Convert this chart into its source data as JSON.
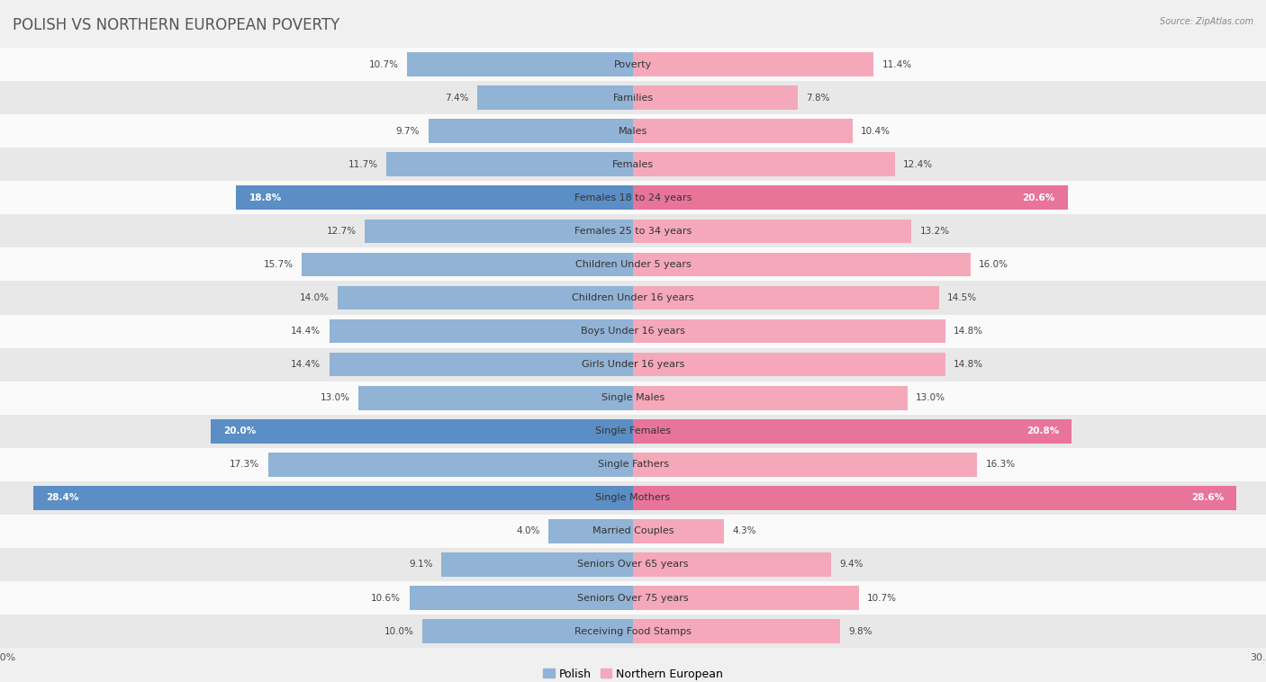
{
  "title": "POLISH VS NORTHERN EUROPEAN POVERTY",
  "source": "Source: ZipAtlas.com",
  "categories": [
    "Poverty",
    "Families",
    "Males",
    "Females",
    "Females 18 to 24 years",
    "Females 25 to 34 years",
    "Children Under 5 years",
    "Children Under 16 years",
    "Boys Under 16 years",
    "Girls Under 16 years",
    "Single Males",
    "Single Females",
    "Single Fathers",
    "Single Mothers",
    "Married Couples",
    "Seniors Over 65 years",
    "Seniors Over 75 years",
    "Receiving Food Stamps"
  ],
  "polish_values": [
    10.7,
    7.4,
    9.7,
    11.7,
    18.8,
    12.7,
    15.7,
    14.0,
    14.4,
    14.4,
    13.0,
    20.0,
    17.3,
    28.4,
    4.0,
    9.1,
    10.6,
    10.0
  ],
  "northern_european_values": [
    11.4,
    7.8,
    10.4,
    12.4,
    20.6,
    13.2,
    16.0,
    14.5,
    14.8,
    14.8,
    13.0,
    20.8,
    16.3,
    28.6,
    4.3,
    9.4,
    10.7,
    9.8
  ],
  "polish_color": "#91b3d5",
  "northern_european_color": "#f5a8ba",
  "highlight_polish_color": "#5b8ec4",
  "highlight_ne_color": "#e8749a",
  "highlight_rows": [
    4,
    11,
    13
  ],
  "axis_max": 30.0,
  "bg_color": "#f0f0f0",
  "row_bg_even": "#fafafa",
  "row_bg_odd": "#e8e8e8",
  "title_fontsize": 12,
  "label_fontsize": 8,
  "value_fontsize": 7.5,
  "legend_fontsize": 9,
  "axis_label_fontsize": 8
}
